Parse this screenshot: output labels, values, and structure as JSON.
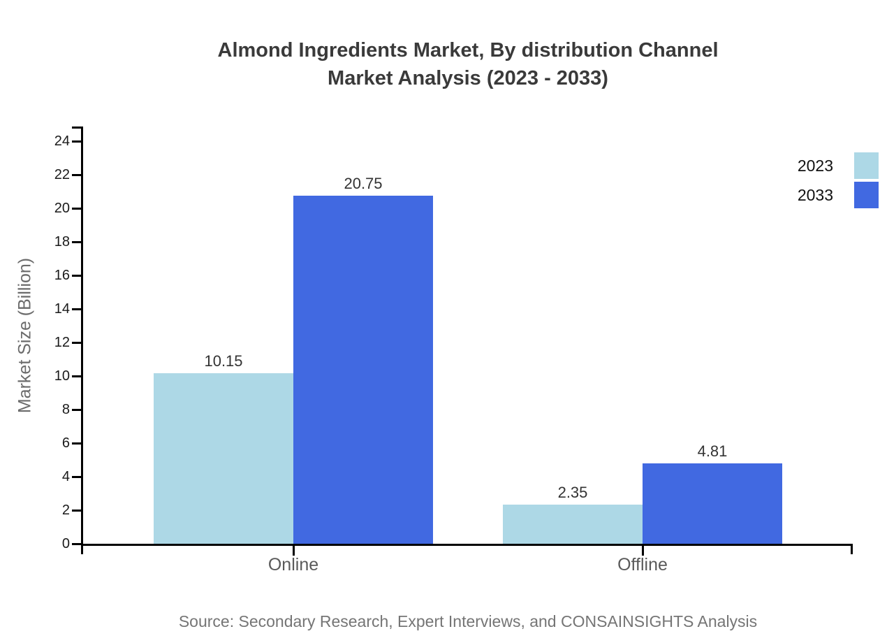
{
  "title": {
    "line1": "Almond Ingredients Market, By distribution Channel",
    "line2": "Market Analysis (2023 - 2033)"
  },
  "chart_data": {
    "type": "bar",
    "categories": [
      "Online",
      "Offline"
    ],
    "series": [
      {
        "name": "2023",
        "color": "#ADD8E6",
        "values": [
          10.15,
          2.35
        ]
      },
      {
        "name": "2033",
        "color": "#4169E1",
        "values": [
          20.75,
          4.81
        ]
      }
    ],
    "value_label_format": "2dp",
    "title": "Almond Ingredients Market, By distribution Channel Market Analysis (2023 - 2033)",
    "xlabel": "",
    "ylabel": "Market Size (Billion)",
    "ylim": [
      0,
      24
    ],
    "ytick_step": 2,
    "grid": false,
    "legend_position": "top-right"
  },
  "source": "Source: Secondary Research, Expert Interviews, and CONSAINSIGHTS Analysis"
}
